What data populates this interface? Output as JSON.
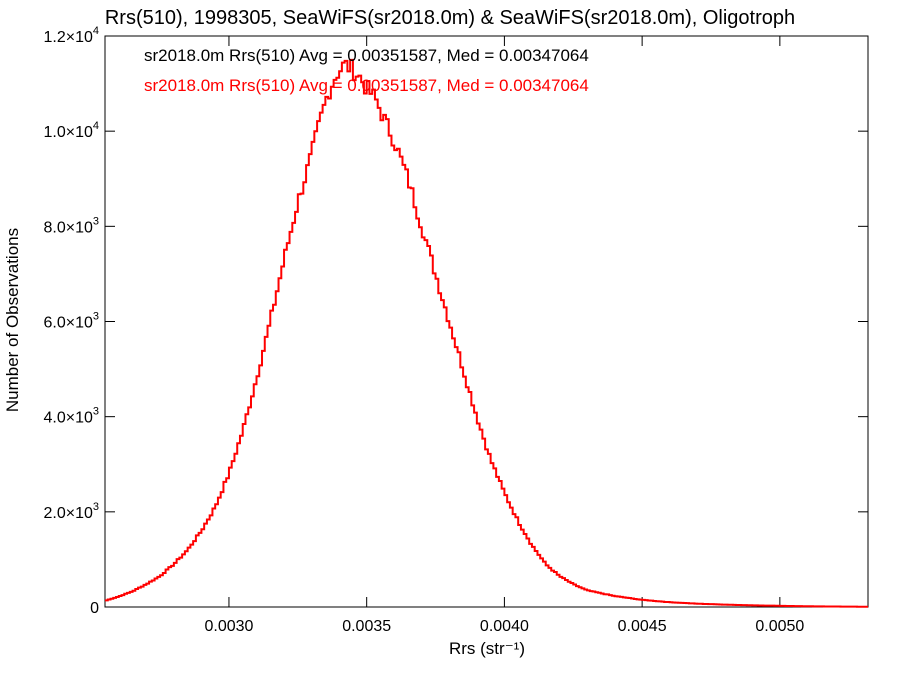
{
  "chart_data": {
    "type": "histogram",
    "title": "Rrs(510), 1998305, SeaWiFS(sr2018.0m) & SeaWiFS(sr2018.0m), Oligotroph",
    "xlabel": "Rrs (str⁻¹)",
    "ylabel": "Number of Observations",
    "xlim": [
      0.00255,
      0.00532
    ],
    "ylim": [
      0,
      12000
    ],
    "grid": false,
    "x_ticks": [
      {
        "value": 0.003,
        "label": "0.0030"
      },
      {
        "value": 0.0035,
        "label": "0.0035"
      },
      {
        "value": 0.004,
        "label": "0.0040"
      },
      {
        "value": 0.0045,
        "label": "0.0045"
      },
      {
        "value": 0.005,
        "label": "0.0050"
      }
    ],
    "y_ticks": [
      {
        "value": 0,
        "mantissa": "0",
        "exp": ""
      },
      {
        "value": 2000,
        "mantissa": "2.0×10",
        "exp": "3"
      },
      {
        "value": 4000,
        "mantissa": "4.0×10",
        "exp": "3"
      },
      {
        "value": 6000,
        "mantissa": "6.0×10",
        "exp": "3"
      },
      {
        "value": 8000,
        "mantissa": "8.0×10",
        "exp": "3"
      },
      {
        "value": 10000,
        "mantissa": "1.0×10",
        "exp": "4"
      },
      {
        "value": 12000,
        "mantissa": "1.2×10",
        "exp": "4"
      }
    ],
    "legend": [
      {
        "text": "sr2018.0m Rrs(510) Avg = 0.00351587, Med = 0.00347064",
        "color": "#000000"
      },
      {
        "text": "sr2018.0m Rrs(510) Avg = 0.00351587, Med = 0.00347064",
        "color": "#ff0000"
      }
    ],
    "series": [
      {
        "color": "#ff0000",
        "bin_width": 1e-05,
        "x": [
          0.00255,
          0.0026,
          0.00265,
          0.0027,
          0.00275,
          0.0028,
          0.00285,
          0.0029,
          0.00295,
          0.003,
          0.00305,
          0.0031,
          0.00315,
          0.0032,
          0.00325,
          0.0033,
          0.00333,
          0.00336,
          0.00339,
          0.00342,
          0.00345,
          0.00348,
          0.0035,
          0.00353,
          0.00356,
          0.0036,
          0.00365,
          0.0037,
          0.00375,
          0.0038,
          0.00385,
          0.0039,
          0.00395,
          0.004,
          0.00405,
          0.0041,
          0.00415,
          0.0042,
          0.00425,
          0.0043,
          0.0044,
          0.0045,
          0.0046,
          0.0047,
          0.0048,
          0.0049,
          0.005,
          0.0051,
          0.0052,
          0.00532
        ],
        "y": [
          130,
          220,
          330,
          480,
          650,
          900,
          1200,
          1600,
          2100,
          2800,
          3700,
          4800,
          6000,
          7300,
          8500,
          9500,
          10200,
          10800,
          11200,
          11400,
          11300,
          11100,
          10900,
          10700,
          10300,
          9800,
          9000,
          8000,
          7000,
          6000,
          5000,
          4000,
          3100,
          2400,
          1800,
          1300,
          900,
          650,
          480,
          350,
          230,
          150,
          100,
          70,
          50,
          35,
          25,
          15,
          10,
          5
        ]
      }
    ]
  }
}
